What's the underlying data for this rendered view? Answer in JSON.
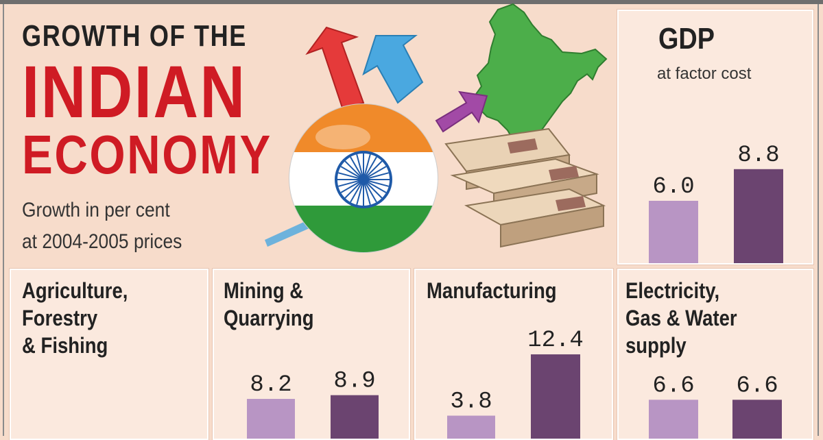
{
  "header": {
    "line1": "GROWTH OF THE",
    "line2": "INDIAN",
    "line3": "ECONOMY",
    "sub1": "Growth in per cent",
    "sub2": "at 2004-2005 prices"
  },
  "colors": {
    "background": "#f7dccb",
    "panel": "#fbe9de",
    "title_red": "#cf1b24",
    "series_light": "#b895c4",
    "series_dark": "#6b4470",
    "map_green": "#4cae4a",
    "arrow_red": "#e53a3a",
    "arrow_blue": "#4aa8e0",
    "arrow_purple": "#a24aa6",
    "flag_saffron": "#f08a2a",
    "flag_green": "#2f9a3a",
    "chakra_blue": "#1f5aa8"
  },
  "icons": [
    "india-map-icon",
    "flag-globe-icon",
    "currency-bundles-icon",
    "growth-arrow-icon"
  ],
  "chart_data": [
    {
      "type": "bar",
      "title": "GDP",
      "subtitle": "at factor cost",
      "series": [
        {
          "values": [
            6.0
          ]
        },
        {
          "values": [
            8.8
          ]
        }
      ],
      "value_labels": [
        "6.0",
        "8.8"
      ],
      "ylim": [
        0,
        9
      ]
    },
    {
      "type": "bar",
      "title": "Agriculture, Forestry & Fishing",
      "title_lines": [
        "Agriculture,",
        "Forestry",
        "& Fishing"
      ],
      "series": [],
      "value_labels": []
    },
    {
      "type": "bar",
      "title": "Mining & Quarrying",
      "title_lines": [
        "Mining &",
        "Quarrying"
      ],
      "series": [
        {
          "values": [
            8.2
          ]
        },
        {
          "values": [
            8.9
          ]
        }
      ],
      "value_labels": [
        "8.2",
        "8.9"
      ],
      "ylim": [
        0,
        9
      ]
    },
    {
      "type": "bar",
      "title": "Manufacturing",
      "title_lines": [
        "Manufacturing"
      ],
      "series": [
        {
          "values": [
            3.8
          ]
        },
        {
          "values": [
            12.4
          ]
        }
      ],
      "value_labels": [
        "3.8",
        "12.4"
      ],
      "ylim": [
        0,
        13
      ]
    },
    {
      "type": "bar",
      "title": "Electricity, Gas & Water supply",
      "title_lines": [
        "Electricity,",
        "Gas & Water",
        "supply"
      ],
      "series": [
        {
          "values": [
            6.6
          ]
        },
        {
          "values": [
            6.6
          ]
        }
      ],
      "value_labels": [
        "6.6",
        "6.6"
      ],
      "ylim": [
        0,
        9
      ]
    }
  ]
}
